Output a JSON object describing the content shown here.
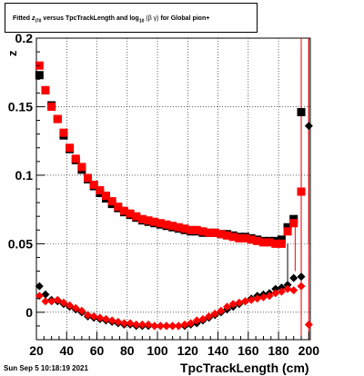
{
  "title": {
    "prefix": "Fitted",
    "z_symbol": "z",
    "z_sub": "I70",
    "middle": "versus TpcTrackLength and log",
    "log_sub": "10",
    "beta_gamma": "(β  γ)",
    "suffix": "for Global pion+"
  },
  "footer": {
    "datestamp": "Sun Sep  5 10:18:19 2021",
    "xaxis_title": "TpcTrackLength (cm)"
  },
  "chart_data": {
    "type": "scatter",
    "xlabel": "TpcTrackLength (cm)",
    "ylabel": "z",
    "xlim": [
      20,
      201
    ],
    "ylim": [
      -0.02,
      0.2
    ],
    "grid": true,
    "x_ticks": [
      "20",
      "40",
      "60",
      "80",
      "100",
      "120",
      "140",
      "160",
      "180",
      "200"
    ],
    "y_ticks": [
      "0",
      "0.05",
      "0.1",
      "0.15"
    ],
    "y_top_tick_partial": "0.2",
    "colors": {
      "black": "#000000",
      "red": "#ff0000"
    },
    "series": [
      {
        "marker": "square",
        "color": "black",
        "x": [
          22,
          26,
          30,
          34,
          38,
          42,
          46,
          50,
          54,
          58,
          62,
          66,
          70,
          74,
          78,
          82,
          86,
          90,
          94,
          98,
          102,
          106,
          110,
          114,
          118,
          122,
          126,
          130,
          134,
          138,
          142,
          146,
          150,
          154,
          158,
          162,
          166,
          170,
          174,
          178,
          182,
          186,
          190,
          195
        ],
        "y": [
          0.173,
          0.162,
          0.151,
          0.141,
          0.129,
          0.119,
          0.111,
          0.104,
          0.097,
          0.092,
          0.087,
          0.083,
          0.079,
          0.076,
          0.073,
          0.071,
          0.069,
          0.067,
          0.066,
          0.065,
          0.064,
          0.063,
          0.062,
          0.061,
          0.06,
          0.059,
          0.059,
          0.058,
          0.058,
          0.058,
          0.057,
          0.057,
          0.056,
          0.055,
          0.055,
          0.054,
          0.053,
          0.052,
          0.052,
          0.052,
          0.053,
          0.062,
          0.068,
          0.146
        ]
      },
      {
        "marker": "square",
        "color": "red",
        "x": [
          22,
          26,
          30,
          34,
          38,
          42,
          46,
          50,
          54,
          58,
          62,
          66,
          70,
          74,
          78,
          82,
          86,
          90,
          94,
          98,
          102,
          106,
          110,
          114,
          118,
          122,
          126,
          130,
          134,
          138,
          142,
          146,
          150,
          154,
          158,
          162,
          166,
          170,
          174,
          178,
          182,
          186,
          190,
          195
        ],
        "y": [
          0.18,
          0.162,
          0.15,
          0.141,
          0.131,
          0.12,
          0.112,
          0.106,
          0.098,
          0.093,
          0.089,
          0.085,
          0.081,
          0.077,
          0.074,
          0.072,
          0.07,
          0.068,
          0.067,
          0.066,
          0.065,
          0.064,
          0.063,
          0.062,
          0.061,
          0.06,
          0.06,
          0.059,
          0.058,
          0.058,
          0.057,
          0.056,
          0.055,
          0.054,
          0.054,
          0.053,
          0.052,
          0.051,
          0.051,
          0.05,
          0.05,
          0.059,
          0.065,
          0.088
        ]
      },
      {
        "marker": "diamond",
        "color": "black",
        "x": [
          22,
          26,
          30,
          34,
          38,
          42,
          46,
          50,
          54,
          58,
          62,
          66,
          70,
          74,
          78,
          82,
          86,
          90,
          94,
          98,
          102,
          106,
          110,
          114,
          118,
          122,
          126,
          130,
          134,
          138,
          142,
          146,
          150,
          154,
          158,
          162,
          166,
          170,
          174,
          178,
          182,
          186,
          190,
          195,
          200
        ],
        "y": [
          0.019,
          0.013,
          0.009,
          0.008,
          0.006,
          0.004,
          0.002,
          0.0,
          -0.003,
          -0.004,
          -0.005,
          -0.006,
          -0.007,
          -0.008,
          -0.009,
          -0.009,
          -0.01,
          -0.01,
          -0.01,
          -0.01,
          -0.01,
          -0.01,
          -0.01,
          -0.01,
          -0.01,
          -0.009,
          -0.008,
          -0.006,
          -0.004,
          -0.002,
          0.0,
          0.002,
          0.004,
          0.006,
          0.008,
          0.01,
          0.012,
          0.013,
          0.014,
          0.017,
          0.018,
          0.02,
          0.025,
          0.026,
          0.136
        ]
      },
      {
        "marker": "diamond",
        "color": "red",
        "x": [
          22,
          26,
          30,
          34,
          38,
          42,
          46,
          50,
          54,
          58,
          62,
          66,
          70,
          74,
          78,
          82,
          86,
          90,
          94,
          98,
          102,
          106,
          110,
          114,
          118,
          122,
          126,
          130,
          134,
          138,
          142,
          146,
          150,
          154,
          158,
          162,
          166,
          170,
          174,
          178,
          182,
          186,
          190,
          195,
          200
        ],
        "y": [
          0.012,
          0.008,
          0.008,
          0.009,
          0.007,
          0.005,
          0.003,
          0.001,
          -0.002,
          -0.003,
          -0.004,
          -0.005,
          -0.006,
          -0.007,
          -0.008,
          -0.008,
          -0.009,
          -0.009,
          -0.009,
          -0.01,
          -0.01,
          -0.01,
          -0.01,
          -0.01,
          -0.009,
          -0.008,
          -0.006,
          -0.005,
          -0.003,
          -0.001,
          0.001,
          0.004,
          0.006,
          0.007,
          0.008,
          0.009,
          0.01,
          0.011,
          0.012,
          0.014,
          0.015,
          0.017,
          0.016,
          0.019,
          -0.009
        ]
      }
    ]
  }
}
